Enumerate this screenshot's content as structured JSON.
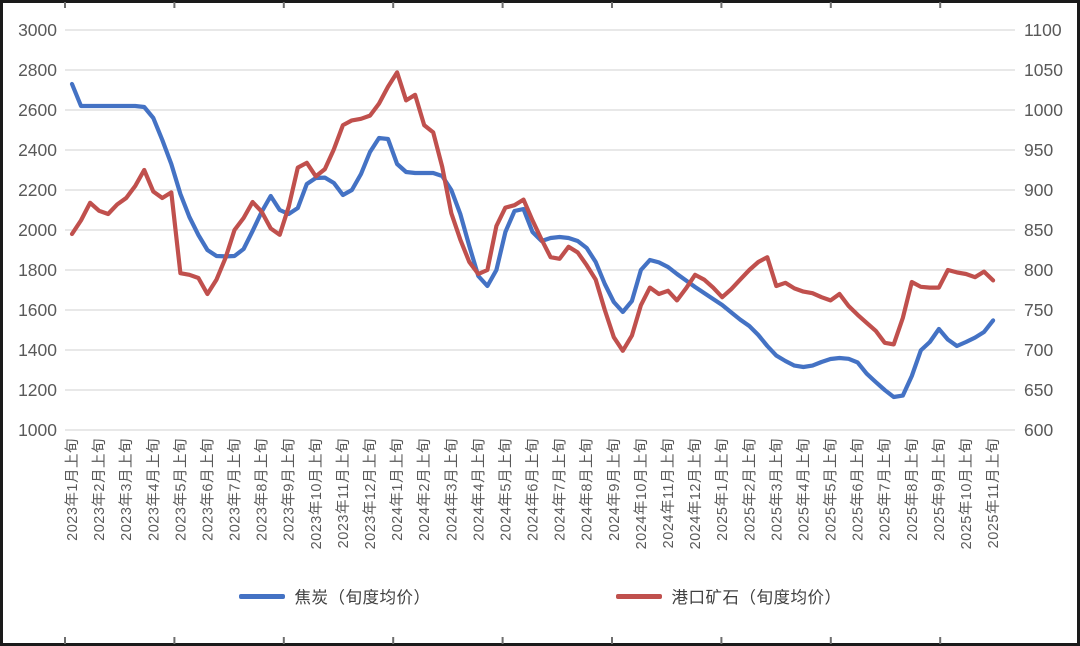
{
  "colors": {
    "blue": "#4472C4",
    "red": "#C0504D",
    "grid": "#D9D9D9",
    "axis_text": "#595959",
    "legend_text": "#404040",
    "frame": "#1A1A1A",
    "background": "#FFFFFF"
  },
  "legend": {
    "coke_label": "焦炭（旬度均价）",
    "ore_label": "港口矿石（旬度均价）"
  },
  "chart_data": {
    "type": "line",
    "title": "",
    "grid": true,
    "legend_position": "bottom",
    "points_per_x_label": 3,
    "x_tick_labels": [
      "2023年1月上旬",
      "2023年2月上旬",
      "2023年3月上旬",
      "2023年4月上旬",
      "2023年5月上旬",
      "2023年6月上旬",
      "2023年7月上旬",
      "2023年8月上旬",
      "2023年9月上旬",
      "2023年10月上旬",
      "2023年11月上旬",
      "2023年12月上旬",
      "2024年1月上旬",
      "2024年2月上旬",
      "2024年3月上旬",
      "2024年4月上旬",
      "2024年5月上旬",
      "2024年6月上旬",
      "2024年7月上旬",
      "2024年8月上旬",
      "2024年9月上旬",
      "2024年10月上旬",
      "2024年11月上旬",
      "2024年12月上旬",
      "2025年1月上旬",
      "2025年2月上旬",
      "2025年3月上旬",
      "2025年4月上旬",
      "2025年5月上旬",
      "2025年6月上旬",
      "2025年7月上旬",
      "2025年8月上旬",
      "2025年9月上旬",
      "2025年10月上旬",
      "2025年11月上旬"
    ],
    "left_axis": {
      "min": 1000,
      "max": 3000,
      "step": 200,
      "ticks": [
        3000,
        2800,
        2600,
        2400,
        2200,
        2000,
        1800,
        1600,
        1400,
        1200,
        1000
      ]
    },
    "right_axis": {
      "min": 600,
      "max": 1100,
      "step": 50,
      "ticks": [
        1100,
        1050,
        1000,
        950,
        900,
        850,
        800,
        750,
        700,
        650,
        600
      ]
    },
    "series": [
      {
        "id": "coke",
        "name": "焦炭（旬度均价）",
        "axis": "left",
        "color": "#4472C4",
        "values": [
          2730,
          2620,
          2620,
          2620,
          2620,
          2620,
          2620,
          2620,
          2615,
          2560,
          2450,
          2330,
          2180,
          2065,
          1975,
          1900,
          1870,
          1868,
          1870,
          1905,
          1995,
          2090,
          2170,
          2100,
          2080,
          2110,
          2230,
          2260,
          2262,
          2235,
          2175,
          2200,
          2280,
          2390,
          2460,
          2455,
          2330,
          2290,
          2285,
          2285,
          2285,
          2270,
          2200,
          2080,
          1920,
          1770,
          1720,
          1800,
          1990,
          2095,
          2105,
          1990,
          1945,
          1960,
          1965,
          1960,
          1945,
          1910,
          1840,
          1730,
          1640,
          1590,
          1645,
          1800,
          1850,
          1838,
          1815,
          1780,
          1748,
          1715,
          1685,
          1655,
          1625,
          1588,
          1552,
          1520,
          1475,
          1420,
          1372,
          1345,
          1322,
          1315,
          1322,
          1340,
          1355,
          1360,
          1356,
          1338,
          1282,
          1240,
          1200,
          1165,
          1172,
          1270,
          1398,
          1440,
          1505,
          1452,
          1420,
          1440,
          1462,
          1490,
          1548
        ]
      },
      {
        "id": "port-ore",
        "name": "港口矿石（旬度均价）",
        "axis": "right",
        "color": "#C0504D",
        "values": [
          845,
          862,
          884,
          874,
          870,
          882,
          890,
          905,
          925,
          898,
          890,
          897,
          796,
          794,
          790,
          770,
          788,
          815,
          850,
          865,
          885,
          873,
          852,
          844,
          879,
          928,
          934,
          917,
          926,
          951,
          981,
          987,
          989,
          993,
          1008,
          1029,
          1047,
          1012,
          1019,
          981,
          972,
          929,
          871,
          838,
          810,
          795,
          800,
          855,
          878,
          881,
          888,
          862,
          838,
          816,
          814,
          829,
          822,
          806,
          788,
          750,
          716,
          699,
          718,
          756,
          778,
          770,
          774,
          762,
          777,
          794,
          788,
          778,
          766,
          776,
          788,
          800,
          810,
          816,
          780,
          784,
          777,
          773,
          771,
          766,
          762,
          770,
          755,
          744,
          734,
          724,
          709,
          707,
          740,
          785,
          779,
          778,
          778,
          800,
          797,
          795,
          791,
          798,
          787
        ]
      }
    ]
  }
}
